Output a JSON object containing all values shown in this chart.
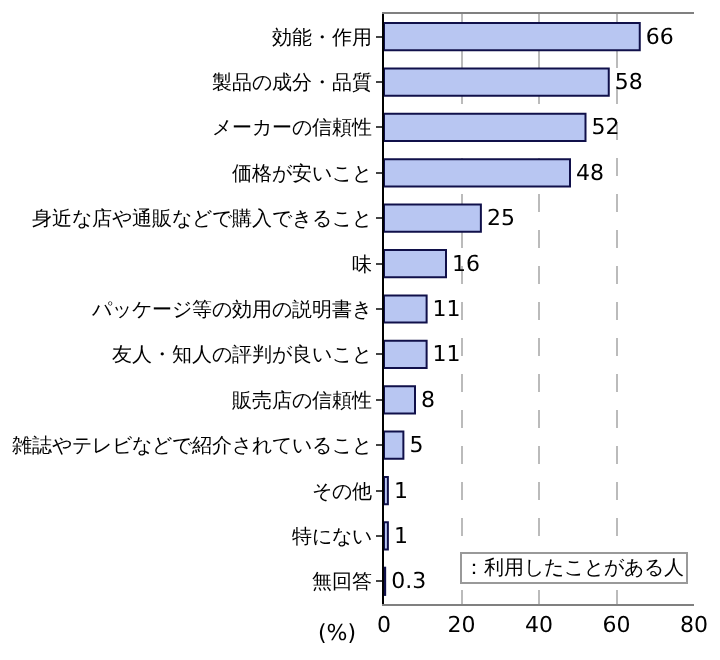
{
  "chart_data": {
    "type": "bar",
    "orientation": "horizontal",
    "xlabel": "(%)",
    "categories": [
      "効能・作用",
      "製品の成分・品質",
      "メーカーの信頼性",
      "価格が安いこと",
      "身近な店や通販などで購入できること",
      "味",
      "パッケージ等の効用の説明書き",
      "友人・知人の評判が良いこと",
      "販売店の信頼性",
      "雑誌やテレビなどで紹介されていること",
      "その他",
      "特にない",
      "無回答"
    ],
    "values": [
      66,
      58,
      52,
      48,
      25,
      16,
      11,
      11,
      8,
      5,
      1,
      1,
      0.3
    ],
    "color": "#b8c6f2",
    "xlim": [
      0,
      80
    ],
    "xticks": [
      0,
      20,
      40,
      60,
      80
    ],
    "grid": "x",
    "data_labels": true,
    "annotations": [
      "：利用したことがある人"
    ]
  }
}
